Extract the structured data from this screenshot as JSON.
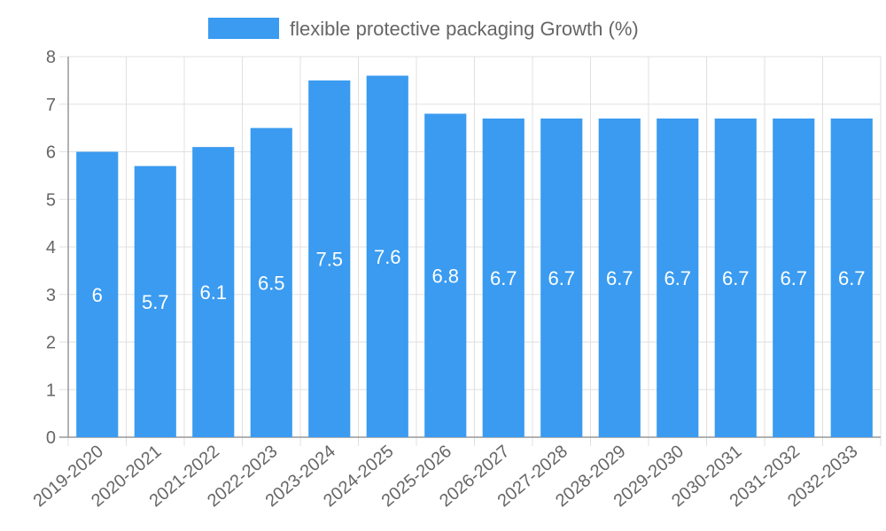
{
  "chart_data": {
    "type": "bar",
    "legend_label": "flexible protective packaging Growth (%)",
    "categories": [
      "2019-2020",
      "2020-2021",
      "2021-2022",
      "2022-2023",
      "2023-2024",
      "2024-2025",
      "2025-2026",
      "2026-2027",
      "2027-2028",
      "2028-2029",
      "2029-2030",
      "2030-2031",
      "2031-2032",
      "2032-2033"
    ],
    "values": [
      6,
      5.7,
      6.1,
      6.5,
      7.5,
      7.6,
      6.8,
      6.7,
      6.7,
      6.7,
      6.7,
      6.7,
      6.7,
      6.7
    ],
    "ylim": [
      0,
      8
    ],
    "yticks": [
      "0",
      "1",
      "2",
      "3",
      "4",
      "5",
      "6",
      "7",
      "8"
    ],
    "grid": true,
    "legend_position": "top-center",
    "colors": {
      "bar": "#3a9bf0",
      "grid": "#e0e0e0",
      "axis": "#999999",
      "text": "#666666"
    }
  }
}
